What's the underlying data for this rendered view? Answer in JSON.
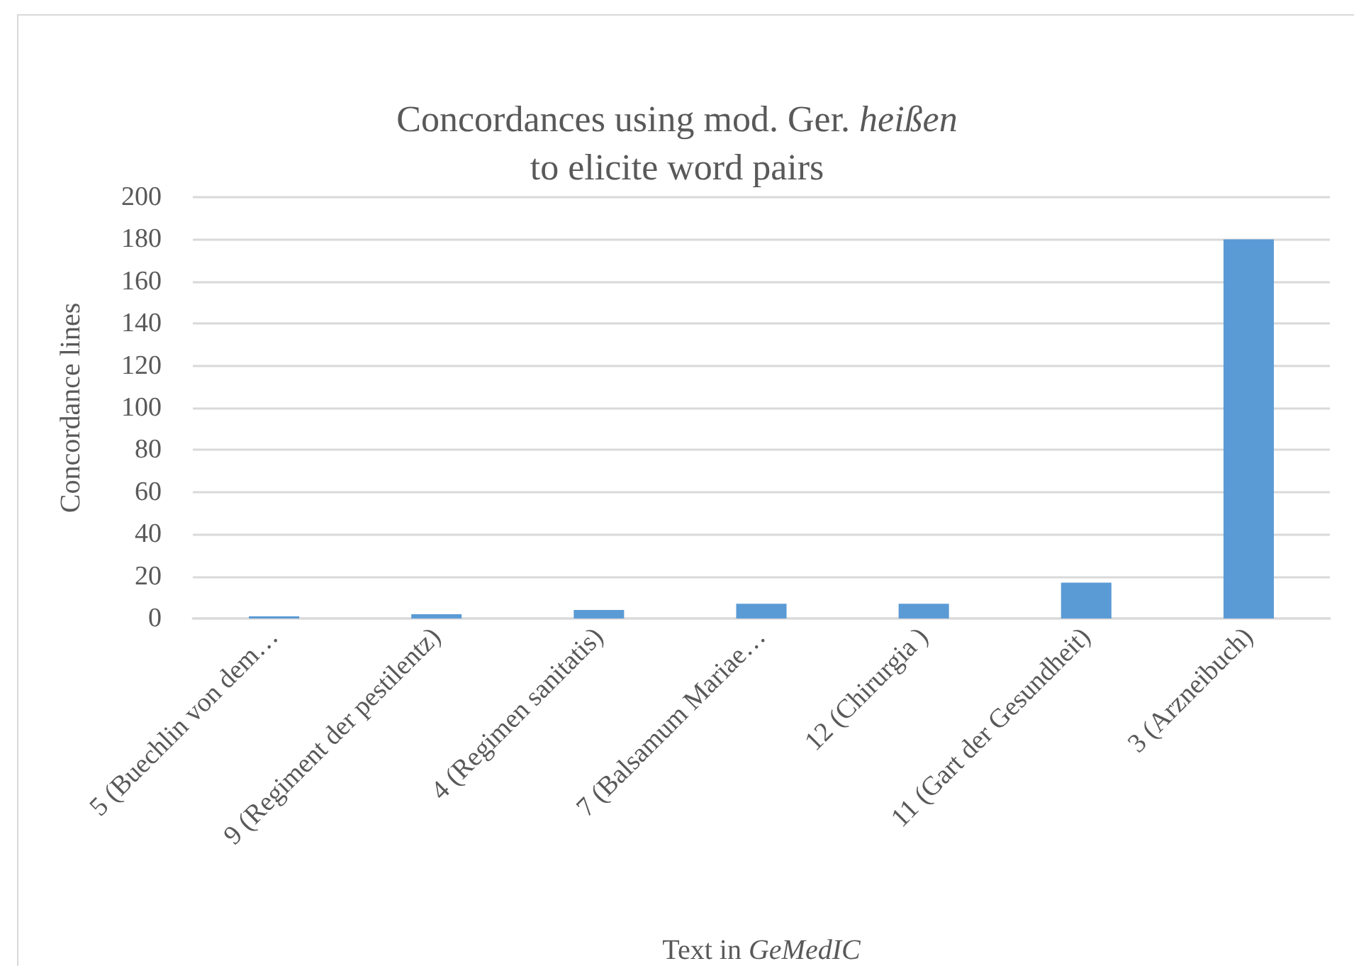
{
  "chart_data": {
    "type": "bar",
    "title": "Concordances using mod. Ger. heißen\nto elicite word pairs",
    "xlabel": "Text in GeMedIC",
    "ylabel": "Concordance lines",
    "categories": [
      "5 (Buechlin von dem…",
      "9 (Regiment der pestilentz)",
      "4 (Regimen sanitatis)",
      "7 (Balsamum Mariae…",
      "12 (Chirurgia )",
      "11 (Gart der Gesundheit)",
      "3 (Arzneibuch)"
    ],
    "values": [
      1,
      2,
      4,
      7,
      7,
      17,
      180
    ],
    "color": "#5b9bd5",
    "ylim": [
      0,
      200
    ],
    "yticks": [
      0,
      20,
      40,
      60,
      80,
      100,
      120,
      140,
      160,
      180,
      200
    ],
    "grid": "y"
  }
}
